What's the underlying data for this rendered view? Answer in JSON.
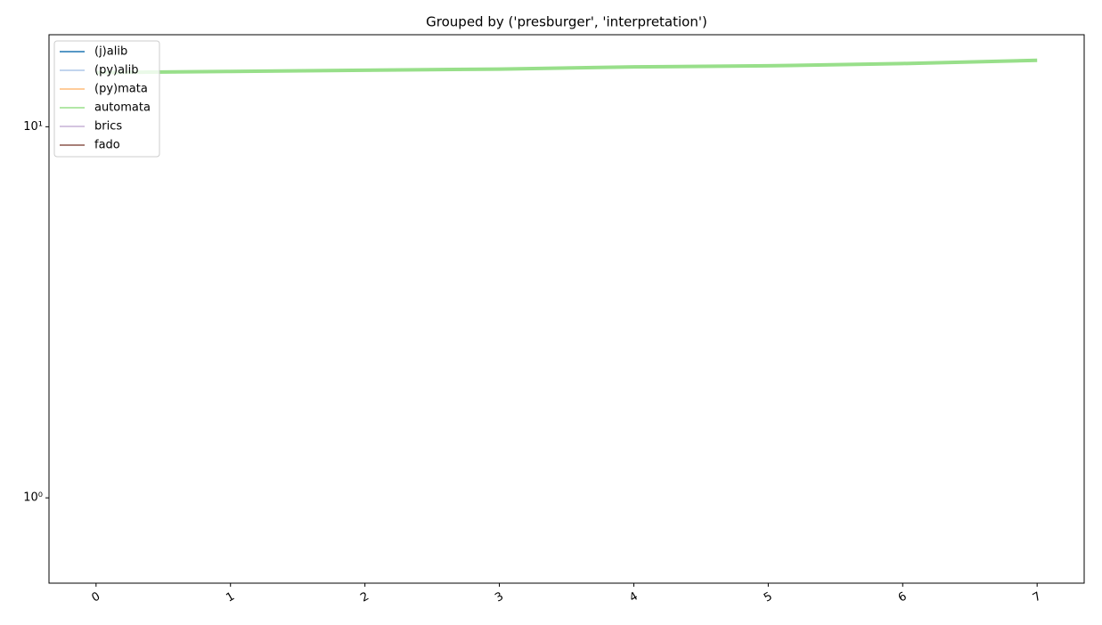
{
  "chart_data": {
    "type": "line",
    "title": "Grouped by ('presburger', 'interpretation')",
    "x": [
      0,
      1,
      2,
      3,
      4,
      5,
      6,
      7
    ],
    "series": [
      {
        "name": "(j)alib",
        "color": "#1f77b4",
        "width": 1.5,
        "values": [
          null,
          null,
          null,
          null,
          null,
          null,
          null,
          null
        ]
      },
      {
        "name": "(py)alib",
        "color": "#aec7e8",
        "width": 1.5,
        "values": [
          null,
          null,
          null,
          null,
          null,
          null,
          null,
          null
        ]
      },
      {
        "name": "(py)mata",
        "color": "#ffbb78",
        "width": 1.5,
        "values": [
          null,
          null,
          null,
          null,
          null,
          null,
          null,
          null
        ]
      },
      {
        "name": "automata",
        "color": "#98df8a",
        "width": 4,
        "values": [
          14.0,
          14.1,
          14.2,
          14.3,
          14.5,
          14.6,
          14.8,
          15.1
        ]
      },
      {
        "name": "brics",
        "color": "#c5b0d5",
        "width": 1.5,
        "values": [
          null,
          null,
          null,
          null,
          null,
          null,
          null,
          null
        ]
      },
      {
        "name": "fado",
        "color": "#8c564b",
        "width": 1.5,
        "values": [
          null,
          null,
          null,
          null,
          null,
          null,
          null,
          null
        ]
      }
    ],
    "xlim": [
      -0.35,
      7.35
    ],
    "xticks": [
      0,
      1,
      2,
      3,
      4,
      5,
      6,
      7
    ],
    "ylim": [
      0.589,
      17.7
    ],
    "ylog": true,
    "yticks": [
      {
        "value": 1,
        "label": "10⁰"
      },
      {
        "value": 10,
        "label": "10¹"
      }
    ],
    "legend": "upper left"
  }
}
